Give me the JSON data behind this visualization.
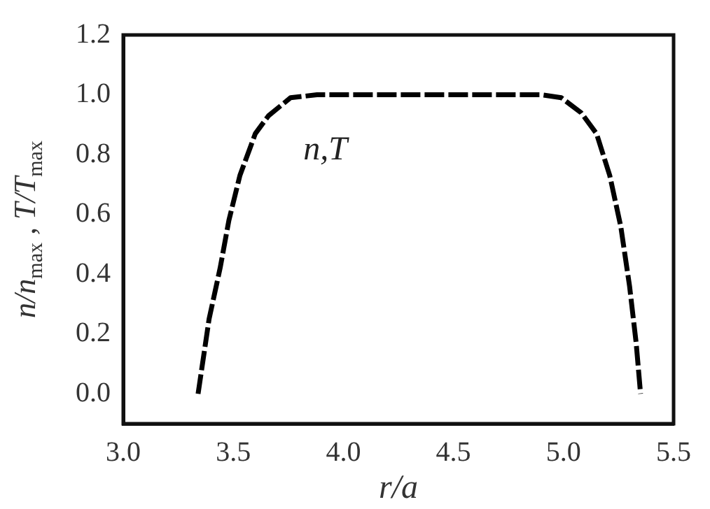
{
  "chart_data": {
    "type": "line",
    "xlabel": "r/a",
    "ylabel": "n/n$_{max}$ , T/T$_{max}$",
    "xlim": [
      3.0,
      5.5
    ],
    "xticks": [
      {
        "value": 3.0,
        "label": "3.0"
      },
      {
        "value": 3.5,
        "label": "3.5"
      },
      {
        "value": 4.0,
        "label": "4.0"
      },
      {
        "value": 4.5,
        "label": "4.5"
      },
      {
        "value": 5.0,
        "label": "5.0"
      },
      {
        "value": 5.5,
        "label": "5.5"
      }
    ],
    "ylim": [
      -0.1,
      1.2
    ],
    "yticks": [
      {
        "value": 0,
        "label": "0.0"
      },
      {
        "value": 0.2,
        "label": "0.2"
      },
      {
        "value": 0.4,
        "label": "0.4"
      },
      {
        "value": 0.6,
        "label": "0.6"
      },
      {
        "value": 0.8,
        "label": "0.8"
      },
      {
        "value": 1.0,
        "label": "1.0"
      },
      {
        "value": 1.2,
        "label": "1.2"
      }
    ],
    "series": [
      {
        "name": "n,T",
        "color": "#000000",
        "x": [
          3.34,
          3.39,
          3.44,
          3.48,
          3.53,
          3.6,
          3.66,
          3.76,
          3.88,
          4.9,
          4.99,
          5.08,
          5.15,
          5.21,
          5.26,
          5.3,
          5.33,
          5.35
        ],
        "values": [
          0.0,
          0.25,
          0.42,
          0.58,
          0.73,
          0.87,
          0.93,
          0.99,
          1.0,
          1.0,
          0.99,
          0.94,
          0.87,
          0.73,
          0.56,
          0.36,
          0.17,
          0.0
        ]
      }
    ],
    "grid": false,
    "legend": false,
    "marker": "none",
    "line_style": "dashed"
  }
}
